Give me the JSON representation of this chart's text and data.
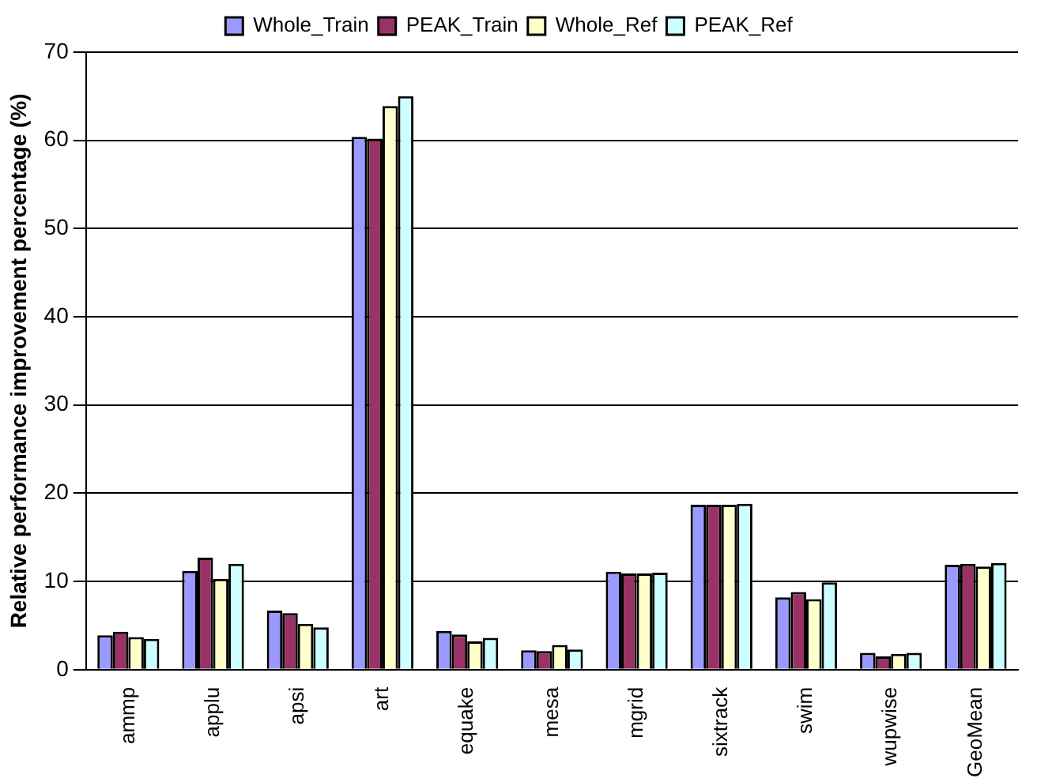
{
  "chart_data": {
    "type": "bar",
    "ylabel": "Relative performance improvement percentage (%)",
    "categories": [
      "ammp",
      "applu",
      "apsi",
      "art",
      "equake",
      "mesa",
      "mgrid",
      "sixtrack",
      "swim",
      "wupwise",
      "GeoMean"
    ],
    "series": [
      {
        "name": "Whole_Train",
        "color": "#9999ff",
        "values": [
          3.9,
          11.2,
          6.7,
          60.4,
          4.4,
          2.2,
          11.1,
          18.7,
          8.2,
          1.9,
          11.9
        ]
      },
      {
        "name": "PEAK_Train",
        "color": "#993366",
        "values": [
          4.3,
          12.7,
          6.4,
          60.2,
          4.0,
          2.1,
          10.9,
          18.7,
          8.8,
          1.5,
          12.0
        ]
      },
      {
        "name": "Whole_Ref",
        "color": "#ffffcc",
        "values": [
          3.7,
          10.3,
          5.2,
          63.9,
          3.2,
          2.8,
          10.9,
          18.7,
          8.0,
          1.8,
          11.7
        ]
      },
      {
        "name": "PEAK_Ref",
        "color": "#ccffff",
        "values": [
          3.5,
          12.0,
          4.8,
          65.0,
          3.6,
          2.3,
          11.0,
          18.8,
          9.9,
          1.9,
          12.1
        ]
      }
    ],
    "ylim": [
      0,
      70
    ],
    "yticks": [
      0,
      10,
      20,
      30,
      40,
      50,
      60,
      70
    ],
    "grid": "y",
    "legend": "top"
  }
}
